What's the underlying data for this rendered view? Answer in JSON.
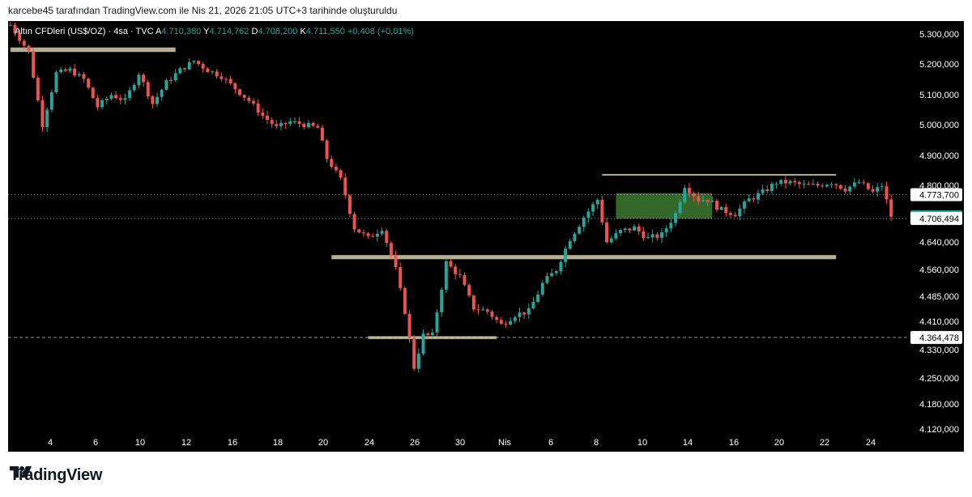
{
  "header": {
    "caption": "karcebe45 tarafından TradingView.com ile Nis 21, 2026 21:05 UTC+3 tarihinde oluşturuldu"
  },
  "footer": {
    "brand": "TradingView",
    "logo_icon": "tradingview-logo-icon"
  },
  "legend": {
    "symbol": "Altın CFDleri (US$/OZ) · 4sa · TVC",
    "open_label": "A",
    "open": "4.710,380",
    "high_label": "Y",
    "high": "4.714,762",
    "low_label": "D",
    "low": "4.708,200",
    "close_label": "K",
    "close": "4.711,550",
    "change": "+0,408 (+0,01%)"
  },
  "colors": {
    "background": "#000000",
    "up": "#26a69a",
    "down": "#ef5350",
    "zone": "#c8c39c",
    "green_zone": "#3d7a33",
    "axis_text": "#ffffff",
    "legend_value": "#26a69a"
  },
  "chart_data": {
    "type": "candlestick",
    "title": "Altın CFDleri (US$/OZ) · 4sa · TVC",
    "x_tick_labels": [
      "4",
      "6",
      "10",
      "12",
      "16",
      "18",
      "20",
      "24",
      "26",
      "30",
      "Nis",
      "6",
      "8",
      "10",
      "14",
      "16",
      "20",
      "22",
      "24"
    ],
    "y_tick_labels": [
      "5.300,000",
      "5.200,000",
      "5.100,000",
      "5.000,000",
      "4.900,000",
      "4.800,000",
      "4.640,000",
      "4.560,000",
      "4.485,000",
      "4.410,000",
      "4.330,000",
      "4.250,000",
      "4.180,000",
      "4.120,000"
    ],
    "y_ticks": [
      5300,
      5200,
      5100,
      5000,
      4900,
      4800,
      4640,
      4560,
      4485,
      4410,
      4330,
      4250,
      4180,
      4120
    ],
    "ylim": [
      4112,
      5330
    ],
    "price_labels": [
      {
        "text": "4.773,700",
        "value": 4773.7,
        "style": "plain"
      },
      {
        "text": "4.711,550",
        "value": 4711.55,
        "style": "last"
      },
      {
        "text": "4.706,494",
        "value": 4706.494,
        "style": "plain"
      },
      {
        "text": "4.364,478",
        "value": 4364.478,
        "style": "plain"
      }
    ],
    "close_path": [
      [
        0,
        5330
      ],
      [
        4,
        5240
      ],
      [
        7,
        5000
      ],
      [
        10,
        5170
      ],
      [
        13,
        5180
      ],
      [
        16,
        5150
      ],
      [
        19,
        5060
      ],
      [
        22,
        5100
      ],
      [
        25,
        5080
      ],
      [
        28,
        5170
      ],
      [
        31,
        5070
      ],
      [
        34,
        5140
      ],
      [
        37,
        5180
      ],
      [
        40,
        5210
      ],
      [
        43,
        5180
      ],
      [
        46,
        5160
      ],
      [
        49,
        5120
      ],
      [
        52,
        5080
      ],
      [
        55,
        5030
      ],
      [
        58,
        4990
      ],
      [
        61,
        5010
      ],
      [
        64,
        5000
      ],
      [
        67,
        4990
      ],
      [
        69,
        4890
      ],
      [
        72,
        4820
      ],
      [
        75,
        4680
      ],
      [
        78,
        4650
      ],
      [
        81,
        4680
      ],
      [
        84,
        4560
      ],
      [
        86,
        4440
      ],
      [
        88,
        4280
      ],
      [
        90,
        4370
      ],
      [
        92,
        4370
      ],
      [
        95,
        4580
      ],
      [
        98,
        4540
      ],
      [
        101,
        4450
      ],
      [
        104,
        4440
      ],
      [
        107,
        4400
      ],
      [
        110,
        4430
      ],
      [
        113,
        4440
      ],
      [
        116,
        4520
      ],
      [
        119,
        4560
      ],
      [
        122,
        4650
      ],
      [
        125,
        4710
      ],
      [
        128,
        4760
      ],
      [
        130,
        4640
      ],
      [
        133,
        4670
      ],
      [
        136,
        4680
      ],
      [
        139,
        4650
      ],
      [
        142,
        4660
      ],
      [
        145,
        4720
      ],
      [
        147,
        4800
      ],
      [
        150,
        4760
      ],
      [
        152,
        4760
      ],
      [
        155,
        4730
      ],
      [
        158,
        4720
      ],
      [
        161,
        4760
      ],
      [
        164,
        4780
      ],
      [
        167,
        4810
      ],
      [
        170,
        4810
      ],
      [
        173,
        4800
      ],
      [
        176,
        4800
      ],
      [
        179,
        4810
      ],
      [
        182,
        4790
      ],
      [
        185,
        4810
      ],
      [
        188,
        4780
      ],
      [
        190,
        4800
      ],
      [
        192,
        4711.55
      ]
    ],
    "levels": [
      {
        "name": "dashed",
        "value": 4364.478
      },
      {
        "name": "dotted-upper",
        "value": 4773.7
      },
      {
        "name": "dotted-lower",
        "value": 4706.494
      }
    ],
    "zones": [
      {
        "name": "resistance-zone-left",
        "x0": 0,
        "x1": 36,
        "y0": 5240,
        "y1": 5255
      },
      {
        "name": "support-zone-mid",
        "x0": 70,
        "x1": 180,
        "y0": 4590,
        "y1": 4602
      },
      {
        "name": "support-zone-low",
        "x0": 78,
        "x1": 106,
        "y0": 4360,
        "y1": 4368
      },
      {
        "name": "green-zone",
        "x0": 132,
        "x1": 153,
        "y0": 4706,
        "y1": 4778
      },
      {
        "name": "resistance-line-right",
        "x0": 129,
        "x1": 180,
        "y0": 4835,
        "y1": 4838
      }
    ]
  }
}
